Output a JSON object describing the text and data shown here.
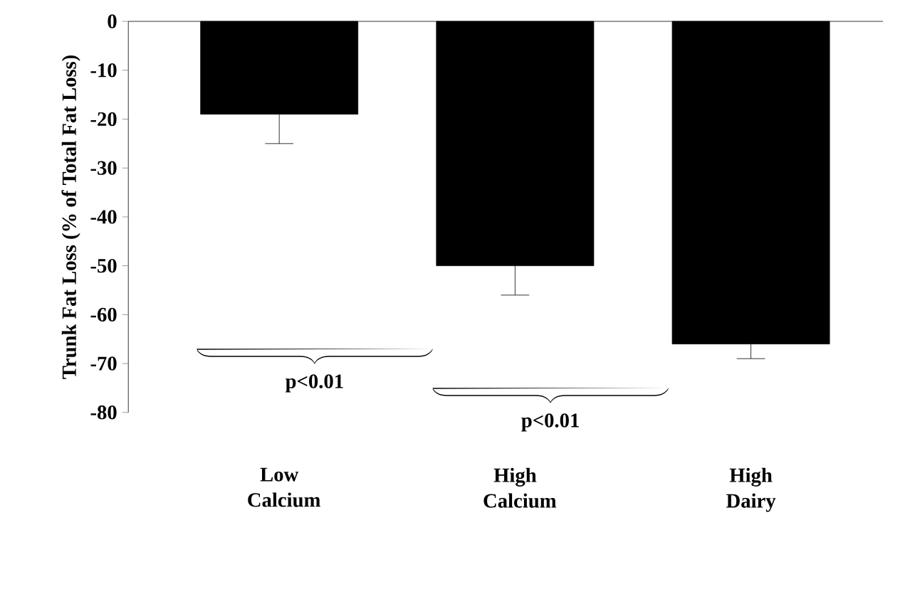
{
  "chart_data": {
    "type": "bar",
    "ylabel": "Trunk Fat Loss (% of Total Fat Loss)",
    "categories": [
      "Low Calcium",
      "High Calcium",
      "High Dairy"
    ],
    "values": [
      -19,
      -50,
      -66
    ],
    "errors": [
      [
        -25,
        -19
      ],
      [
        -56,
        -50
      ],
      [
        -69,
        -66
      ]
    ],
    "color": "#000000",
    "ylim": [
      -80,
      0
    ],
    "yticks": [
      -80,
      -70,
      -60,
      -50,
      -40,
      -30,
      -20,
      -10,
      0
    ],
    "annotations": [
      "p<0.01",
      "p<0.01"
    ],
    "grid": false
  }
}
